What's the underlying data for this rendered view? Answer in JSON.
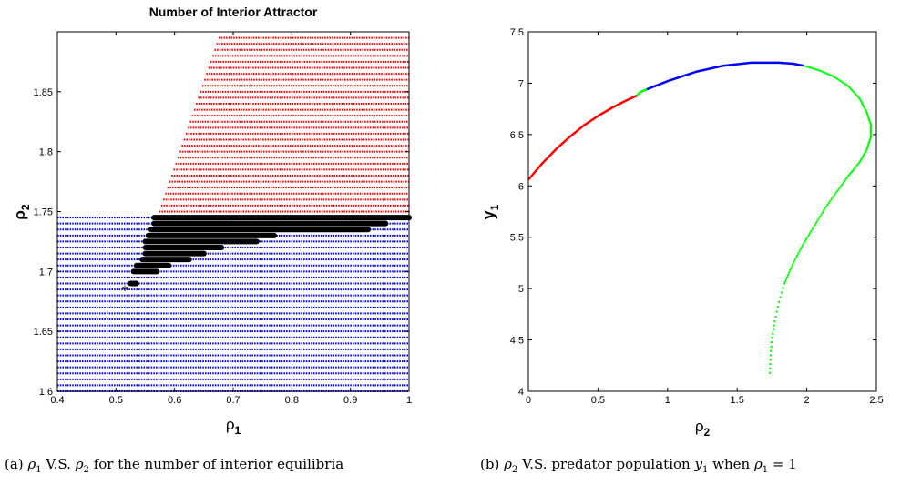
{
  "captions": {
    "a": {
      "label": "(a)",
      "sym1": "ρ",
      "sub1": "1",
      "vs": "V.S.",
      "sym2": "ρ",
      "sub2": "2",
      "rest": "for the number of interior equilibria"
    },
    "b": {
      "label": "(b)",
      "sym1": "ρ",
      "sub1": "2",
      "vs": "V.S. predator population",
      "sym2": "y",
      "sub2": "1",
      "when": "when",
      "sym3": "ρ",
      "sub3": "1",
      "eq": "= 1"
    }
  },
  "colors": {
    "red": "#ff0000",
    "blue": "#0000ff",
    "green": "#00ff00",
    "black": "#000000"
  },
  "chart_data": [
    {
      "type": "scatter",
      "title": "Number of Interior Attractor",
      "xlabel": "ρ",
      "xlabel_sub": "1",
      "ylabel": "ρ",
      "ylabel_sub": "2",
      "xlim": [
        0.4,
        1.0
      ],
      "ylim": [
        1.6,
        1.9
      ],
      "xticks": [
        0.4,
        0.5,
        0.6,
        0.7,
        0.8,
        0.9,
        1
      ],
      "xtick_labels": [
        "0.4",
        "0.5",
        "0.6",
        "0.7",
        "0.8",
        "0.9",
        "1"
      ],
      "yticks": [
        1.6,
        1.65,
        1.7,
        1.75,
        1.8,
        1.85
      ],
      "ytick_labels": [
        "1.6",
        "1.65",
        "1.7",
        "1.75",
        "1.8",
        "1.85"
      ],
      "grid": false,
      "regions": {
        "blue": {
          "rho1_range": [
            0.4,
            1.0
          ],
          "rho2_range": [
            1.6,
            1.745
          ],
          "rho2_step": 0.005
        },
        "red": {
          "left_boundary": [
            [
              0.57,
              1.745
            ],
            [
              0.675,
              1.895
            ]
          ],
          "rho1_max": 1.0,
          "rho2_range": [
            1.75,
            1.895
          ],
          "rho2_step": 0.005
        },
        "black_rows": [
          {
            "rho2": 1.745,
            "rho1_range": [
              0.565,
              1.0
            ]
          },
          {
            "rho2": 1.74,
            "rho1_range": [
              0.565,
              0.96
            ]
          },
          {
            "rho2": 1.735,
            "rho1_range": [
              0.56,
              0.93
            ]
          },
          {
            "rho2": 1.73,
            "rho1_range": [
              0.555,
              0.77
            ]
          },
          {
            "rho2": 1.725,
            "rho1_range": [
              0.55,
              0.74
            ]
          },
          {
            "rho2": 1.72,
            "rho1_range": [
              0.55,
              0.68
            ]
          },
          {
            "rho2": 1.715,
            "rho1_range": [
              0.55,
              0.65
            ]
          },
          {
            "rho2": 1.71,
            "rho1_range": [
              0.545,
              0.625
            ]
          },
          {
            "rho2": 1.705,
            "rho1_range": [
              0.535,
              0.59
            ]
          },
          {
            "rho2": 1.7,
            "rho1_range": [
              0.53,
              0.57
            ]
          },
          {
            "rho2": 1.69,
            "rho1_range": [
              0.525,
              0.535
            ]
          },
          {
            "rho2": 1.685,
            "rho1_range": [
              0.515,
              0.515
            ]
          }
        ]
      }
    },
    {
      "type": "line",
      "title": "",
      "xlabel": "ρ",
      "xlabel_sub": "2",
      "ylabel": "y",
      "ylabel_sub": "1",
      "xlim": [
        0,
        2.5
      ],
      "ylim": [
        4,
        7.5
      ],
      "xticks": [
        0,
        0.5,
        1,
        1.5,
        2,
        2.5
      ],
      "xtick_labels": [
        "0",
        "0.5",
        "1",
        "1.5",
        "2",
        "2.5"
      ],
      "yticks": [
        4,
        4.5,
        5,
        5.5,
        6,
        6.5,
        7,
        7.5
      ],
      "ytick_labels": [
        "4",
        "4.5",
        "5",
        "5.5",
        "6",
        "6.5",
        "7",
        "7.5"
      ],
      "grid": false,
      "series": [
        {
          "color": "red",
          "style": "line",
          "x": [
            0,
            0.1,
            0.2,
            0.3,
            0.4,
            0.5,
            0.6,
            0.7,
            0.78
          ],
          "y": [
            6.06,
            6.22,
            6.36,
            6.48,
            6.59,
            6.68,
            6.76,
            6.83,
            6.88
          ]
        },
        {
          "color": "green",
          "style": "line",
          "x": [
            0.78,
            0.8,
            0.85
          ],
          "y": [
            6.88,
            6.91,
            6.94
          ]
        },
        {
          "color": "blue",
          "style": "line",
          "x": [
            0.85,
            1.0,
            1.2,
            1.4,
            1.6,
            1.7,
            1.8,
            1.9,
            1.98
          ],
          "y": [
            6.94,
            7.02,
            7.11,
            7.17,
            7.2,
            7.2,
            7.2,
            7.19,
            7.17
          ]
        },
        {
          "color": "green",
          "style": "dots",
          "x": [
            1.98,
            2.1,
            2.2,
            2.3,
            2.38,
            2.43,
            2.46,
            2.46,
            2.43,
            2.38,
            2.3,
            2.22,
            2.13,
            2.05,
            1.97,
            1.9,
            1.84,
            1.8,
            1.77,
            1.75,
            1.74,
            1.735
          ],
          "y": [
            7.17,
            7.12,
            7.06,
            6.97,
            6.85,
            6.72,
            6.6,
            6.47,
            6.35,
            6.23,
            6.1,
            5.95,
            5.78,
            5.6,
            5.42,
            5.24,
            5.05,
            4.87,
            4.68,
            4.52,
            4.35,
            4.18
          ]
        }
      ]
    }
  ]
}
